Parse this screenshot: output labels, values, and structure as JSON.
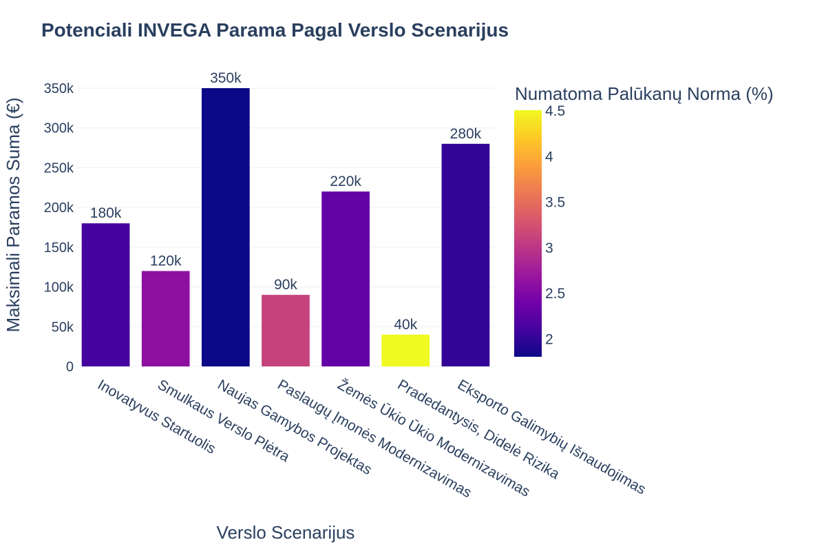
{
  "chart_data": {
    "type": "bar",
    "title": "Potenciali INVEGA Parama Pagal Verslo Scenarijus",
    "xlabel": "Verslo Scenarijus",
    "ylabel": "Maksimali Paramos Suma (€)",
    "categories": [
      "Inovatyvus Startuolis",
      "Smulkaus Verslo Plėtra",
      "Naujas Gamybos Projektas",
      "Paslaugų Įmonės Modernizavimas",
      "Žemės Ūkio Ūkio Modernizavimas",
      "Pradedantysis, Didelė Rizika",
      "Eksporto Galimybių Išnaudojimas"
    ],
    "values": [
      180000,
      120000,
      350000,
      90000,
      220000,
      40000,
      280000
    ],
    "data_labels": [
      "180k",
      "120k",
      "350k",
      "90k",
      "220k",
      "40k",
      "280k"
    ],
    "color_values": [
      2.1,
      2.6,
      1.8,
      3.1,
      2.3,
      4.5,
      2.0
    ],
    "ylim": [
      0,
      350000
    ],
    "yticks": [
      0,
      50000,
      100000,
      150000,
      200000,
      250000,
      300000,
      350000
    ],
    "ytick_labels": [
      "0",
      "50k",
      "100k",
      "150k",
      "200k",
      "250k",
      "300k",
      "350k"
    ],
    "colorbar": {
      "title": "Numatoma Palūkanų Norma (%)",
      "range": [
        1.8,
        4.5
      ],
      "ticks": [
        2,
        2.5,
        3,
        3.5,
        4,
        4.5
      ],
      "tick_labels": [
        "2",
        "2.5",
        "3",
        "3.5",
        "4",
        "4.5"
      ],
      "colorscale": [
        "#0d0887",
        "#46039f",
        "#7201a8",
        "#9c179e",
        "#bd3786",
        "#d8576b",
        "#ed7953",
        "#fb9f3a",
        "#fdca26",
        "#f0f921"
      ]
    },
    "grid": true,
    "colors": {
      "text": "#2a3f5f",
      "grid": "#ebf0f8"
    }
  }
}
